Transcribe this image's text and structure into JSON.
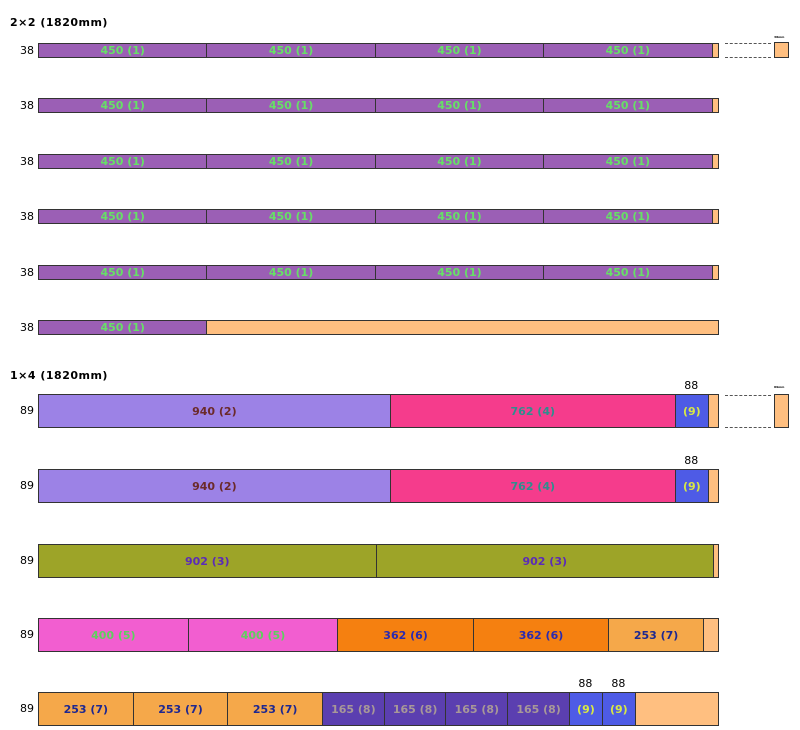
{
  "colors": {
    "offcut": "#FFBF80",
    "border": "#333333"
  },
  "sections": [
    {
      "title": "2×2 (1820mm)",
      "tiny_label": "38mm",
      "rows": [
        {
          "label": "38",
          "pieces": [
            {
              "text": "450 (1)",
              "length": 450,
              "bg": "#9B5FB5",
              "fg": "#66E066"
            },
            {
              "text": "450 (1)",
              "length": 450,
              "bg": "#9B5FB5",
              "fg": "#66E066"
            },
            {
              "text": "450 (1)",
              "length": 450,
              "bg": "#9B5FB5",
              "fg": "#66E066"
            },
            {
              "text": "450 (1)",
              "length": 450,
              "bg": "#9B5FB5",
              "fg": "#66E066"
            }
          ],
          "above": []
        },
        {
          "label": "38",
          "pieces": [
            {
              "text": "450 (1)",
              "length": 450,
              "bg": "#9B5FB5",
              "fg": "#66E066"
            },
            {
              "text": "450 (1)",
              "length": 450,
              "bg": "#9B5FB5",
              "fg": "#66E066"
            },
            {
              "text": "450 (1)",
              "length": 450,
              "bg": "#9B5FB5",
              "fg": "#66E066"
            },
            {
              "text": "450 (1)",
              "length": 450,
              "bg": "#9B5FB5",
              "fg": "#66E066"
            }
          ],
          "above": []
        },
        {
          "label": "38",
          "pieces": [
            {
              "text": "450 (1)",
              "length": 450,
              "bg": "#9B5FB5",
              "fg": "#66E066"
            },
            {
              "text": "450 (1)",
              "length": 450,
              "bg": "#9B5FB5",
              "fg": "#66E066"
            },
            {
              "text": "450 (1)",
              "length": 450,
              "bg": "#9B5FB5",
              "fg": "#66E066"
            },
            {
              "text": "450 (1)",
              "length": 450,
              "bg": "#9B5FB5",
              "fg": "#66E066"
            }
          ],
          "above": []
        },
        {
          "label": "38",
          "pieces": [
            {
              "text": "450 (1)",
              "length": 450,
              "bg": "#9B5FB5",
              "fg": "#66E066"
            },
            {
              "text": "450 (1)",
              "length": 450,
              "bg": "#9B5FB5",
              "fg": "#66E066"
            },
            {
              "text": "450 (1)",
              "length": 450,
              "bg": "#9B5FB5",
              "fg": "#66E066"
            },
            {
              "text": "450 (1)",
              "length": 450,
              "bg": "#9B5FB5",
              "fg": "#66E066"
            }
          ],
          "above": []
        },
        {
          "label": "38",
          "pieces": [
            {
              "text": "450 (1)",
              "length": 450,
              "bg": "#9B5FB5",
              "fg": "#66E066"
            },
            {
              "text": "450 (1)",
              "length": 450,
              "bg": "#9B5FB5",
              "fg": "#66E066"
            },
            {
              "text": "450 (1)",
              "length": 450,
              "bg": "#9B5FB5",
              "fg": "#66E066"
            },
            {
              "text": "450 (1)",
              "length": 450,
              "bg": "#9B5FB5",
              "fg": "#66E066"
            }
          ],
          "above": []
        },
        {
          "label": "38",
          "pieces": [
            {
              "text": "450 (1)",
              "length": 450,
              "bg": "#9B5FB5",
              "fg": "#66E066"
            }
          ],
          "above": []
        }
      ]
    },
    {
      "title": "1×4 (1820mm)",
      "tiny_label": "89mm",
      "rows": [
        {
          "label": "89",
          "pieces": [
            {
              "text": "940 (2)",
              "length": 940,
              "bg": "#9C82E6",
              "fg": "#6B2A2A"
            },
            {
              "text": "762 (4)",
              "length": 762,
              "bg": "#F53C8C",
              "fg": "#2E8E8E"
            },
            {
              "text": "(9)",
              "length": 88,
              "bg": "#4E5BE6",
              "fg": "#D8E844"
            }
          ],
          "above": [
            {
              "text": "88",
              "piece": 2
            }
          ]
        },
        {
          "label": "89",
          "pieces": [
            {
              "text": "940 (2)",
              "length": 940,
              "bg": "#9C82E6",
              "fg": "#6B2A2A"
            },
            {
              "text": "762 (4)",
              "length": 762,
              "bg": "#F53C8C",
              "fg": "#2E8E8E"
            },
            {
              "text": "(9)",
              "length": 88,
              "bg": "#4E5BE6",
              "fg": "#D8E844"
            }
          ],
          "above": [
            {
              "text": "88",
              "piece": 2
            }
          ]
        },
        {
          "label": "89",
          "pieces": [
            {
              "text": "902 (3)",
              "length": 902,
              "bg": "#9DA428",
              "fg": "#5B2BB8"
            },
            {
              "text": "902 (3)",
              "length": 902,
              "bg": "#9DA428",
              "fg": "#5B2BB8"
            }
          ],
          "above": []
        },
        {
          "label": "89",
          "pieces": [
            {
              "text": "400 (5)",
              "length": 400,
              "bg": "#F25ED0",
              "fg": "#5ED05E"
            },
            {
              "text": "400 (5)",
              "length": 400,
              "bg": "#F25ED0",
              "fg": "#5ED05E"
            },
            {
              "text": "362 (6)",
              "length": 362,
              "bg": "#F58010",
              "fg": "#2A2AB0"
            },
            {
              "text": "362 (6)",
              "length": 362,
              "bg": "#F58010",
              "fg": "#2A2AB0"
            },
            {
              "text": "253 (7)",
              "length": 253,
              "bg": "#F5A84A",
              "fg": "#1E2890"
            }
          ],
          "above": []
        },
        {
          "label": "89",
          "pieces": [
            {
              "text": "253 (7)",
              "length": 253,
              "bg": "#F5A84A",
              "fg": "#1E2890"
            },
            {
              "text": "253 (7)",
              "length": 253,
              "bg": "#F5A84A",
              "fg": "#1E2890"
            },
            {
              "text": "253 (7)",
              "length": 253,
              "bg": "#F5A84A",
              "fg": "#1E2890"
            },
            {
              "text": "165 (8)",
              "length": 165,
              "bg": "#5B3FB0",
              "fg": "#A89898"
            },
            {
              "text": "165 (8)",
              "length": 165,
              "bg": "#5B3FB0",
              "fg": "#A89898"
            },
            {
              "text": "165 (8)",
              "length": 165,
              "bg": "#5B3FB0",
              "fg": "#A89898"
            },
            {
              "text": "165 (8)",
              "length": 165,
              "bg": "#5B3FB0",
              "fg": "#A89898"
            },
            {
              "text": "(9)",
              "length": 88,
              "bg": "#4E5BE6",
              "fg": "#D8E844"
            },
            {
              "text": "(9)",
              "length": 88,
              "bg": "#4E5BE6",
              "fg": "#D8E844"
            }
          ],
          "above": [
            {
              "text": "88",
              "piece": 7
            },
            {
              "text": "88",
              "piece": 8
            }
          ]
        }
      ]
    }
  ]
}
